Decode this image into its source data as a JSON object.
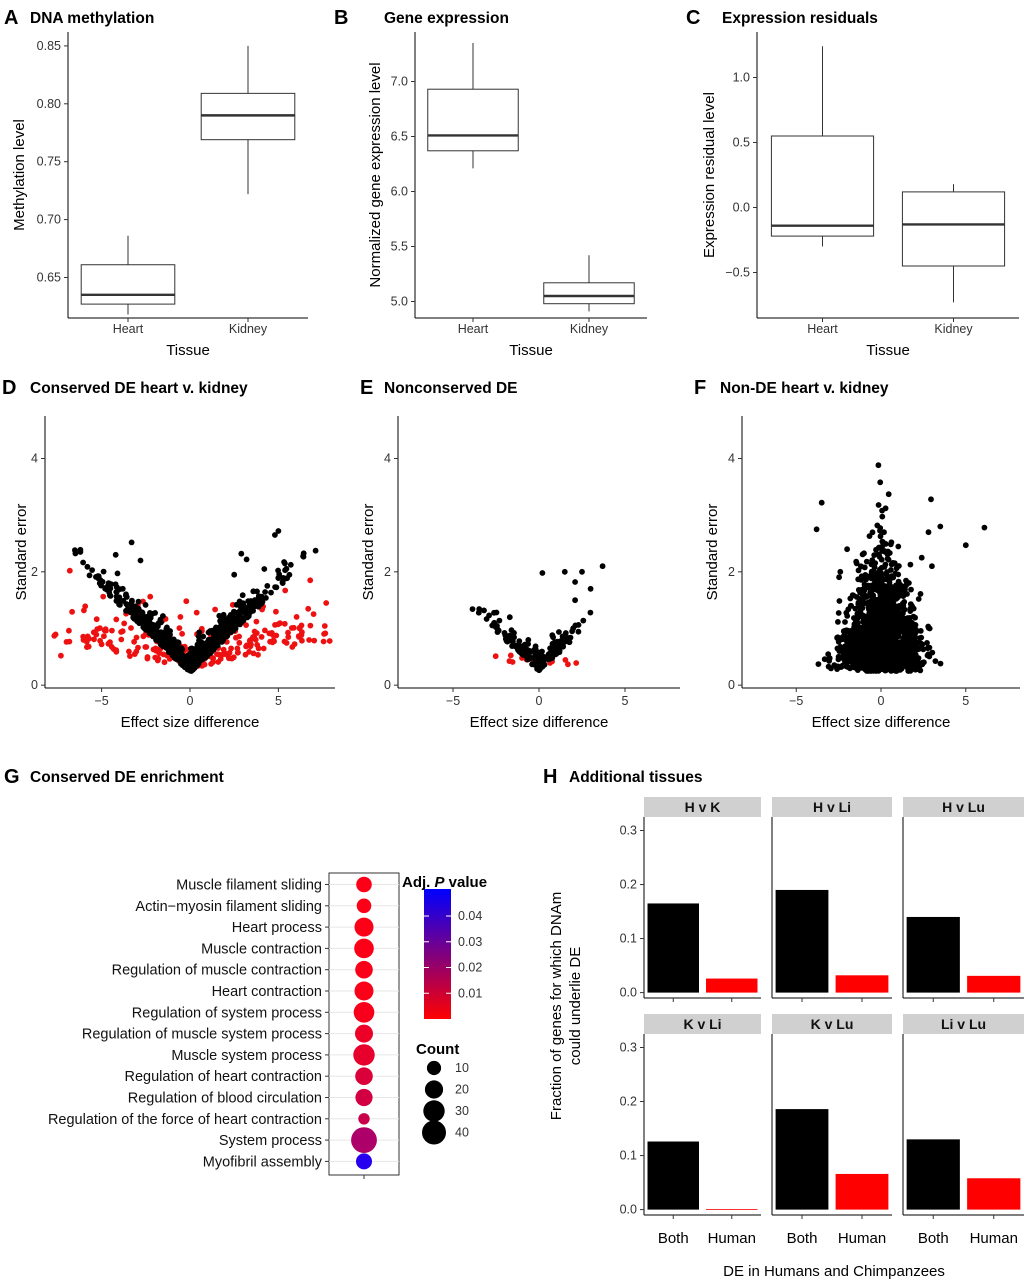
{
  "chart_data": [
    {
      "letter": "A",
      "title": "DNA methylation",
      "type": "box",
      "xlabel": "Tissue",
      "ylabel": "Methylation level",
      "ylim": [
        0.615,
        0.862
      ],
      "yticks": [
        0.65,
        0.7,
        0.75,
        0.8,
        0.85
      ],
      "ytick_labels": [
        "0.65",
        "0.70",
        "0.75",
        "0.80",
        "0.85"
      ],
      "categories": [
        "Heart",
        "Kidney"
      ],
      "boxes": [
        {
          "min": 0.618,
          "q1": 0.627,
          "median": 0.635,
          "q3": 0.661,
          "max": 0.686
        },
        {
          "min": 0.722,
          "q1": 0.769,
          "median": 0.79,
          "q3": 0.809,
          "max": 0.85
        }
      ]
    },
    {
      "letter": "B",
      "title": "Gene expression",
      "type": "box",
      "xlabel": "Tissue",
      "ylabel": "Normalized gene expression level",
      "ylim": [
        4.85,
        7.45
      ],
      "yticks": [
        5.0,
        5.5,
        6.0,
        6.5,
        7.0
      ],
      "ytick_labels": [
        "5.0",
        "5.5",
        "6.0",
        "6.5",
        "7.0"
      ],
      "categories": [
        "Heart",
        "Kidney"
      ],
      "boxes": [
        {
          "min": 6.21,
          "q1": 6.37,
          "median": 6.51,
          "q3": 6.93,
          "max": 7.35
        },
        {
          "min": 4.91,
          "q1": 4.98,
          "median": 5.05,
          "q3": 5.17,
          "max": 5.42
        }
      ]
    },
    {
      "letter": "C",
      "title": "Expression residuals",
      "type": "box",
      "xlabel": "Tissue",
      "ylabel": "Expression residual level",
      "ylim": [
        -0.85,
        1.35
      ],
      "yticks": [
        -0.5,
        0.0,
        0.5,
        1.0
      ],
      "ytick_labels": [
        "-0.5",
        "0.0",
        "0.5",
        "1.0"
      ],
      "categories": [
        "Heart",
        "Kidney"
      ],
      "boxes": [
        {
          "min": -0.3,
          "q1": -0.22,
          "median": -0.14,
          "q3": 0.55,
          "max": 1.24
        },
        {
          "min": -0.73,
          "q1": -0.45,
          "median": -0.13,
          "q3": 0.12,
          "max": 0.18
        }
      ]
    },
    {
      "letter": "D",
      "title": "Conserved DE heart v. kidney",
      "type": "scatter",
      "xlabel": "Effect size difference",
      "ylabel": "Standard error",
      "xlim": [
        -8.2,
        8.2
      ],
      "ylim": [
        -0.05,
        4.75
      ],
      "xticks": [
        -5,
        0,
        5
      ],
      "xtick_labels": [
        "-5",
        "0",
        "5"
      ],
      "yticks": [
        0,
        2,
        4
      ],
      "ytick_labels": [
        "0",
        "2",
        "4"
      ],
      "series": [
        {
          "name": "black",
          "color": "#000000",
          "shape": "v",
          "n": 700,
          "spread": 2.3,
          "base": 0.22,
          "slope": 0.3,
          "noise": 0.18,
          "seed": 11,
          "extra": [
            [
              -6.2,
              2.35
            ],
            [
              -4.2,
              2.3
            ],
            [
              -3.3,
              2.52
            ],
            [
              -2.8,
              2.2
            ],
            [
              -5.1,
              1.8
            ],
            [
              -3.8,
              1.7
            ],
            [
              2.9,
              2.32
            ],
            [
              3.2,
              2.22
            ],
            [
              4.8,
              2.65
            ],
            [
              5.0,
              2.72
            ],
            [
              4.2,
              2.05
            ],
            [
              2.5,
              1.95
            ]
          ]
        },
        {
          "name": "red",
          "color": "#ee1111",
          "shape": "wide",
          "n": 260,
          "spread": 4.6,
          "base": 0.3,
          "slope": 0.06,
          "noise": 0.38,
          "seed": 23,
          "extra": [
            [
              -6.8,
              2.02
            ],
            [
              -7.3,
              0.52
            ],
            [
              7.7,
              1.45
            ],
            [
              7.9,
              0.78
            ],
            [
              6.8,
              1.85
            ],
            [
              -6.0,
              1.32
            ]
          ]
        }
      ]
    },
    {
      "letter": "E",
      "title": "Nonconserved DE",
      "type": "scatter",
      "xlabel": "Effect size difference",
      "ylabel": "Standard error",
      "xlim": [
        -8.2,
        8.2
      ],
      "ylim": [
        -0.05,
        4.75
      ],
      "xticks": [
        -5,
        0,
        5
      ],
      "xtick_labels": [
        "-5",
        "0",
        "5"
      ],
      "yticks": [
        0,
        2,
        4
      ],
      "ytick_labels": [
        "0",
        "2",
        "4"
      ],
      "series": [
        {
          "name": "black",
          "color": "#000000",
          "shape": "v",
          "n": 190,
          "spread": 1.2,
          "base": 0.25,
          "slope": 0.28,
          "noise": 0.16,
          "seed": 5,
          "extra": [
            [
              3.7,
              2.1
            ],
            [
              2.5,
              2.0
            ],
            [
              1.5,
              2.0
            ],
            [
              0.2,
              1.98
            ],
            [
              2.1,
              1.82
            ],
            [
              3.0,
              1.7
            ],
            [
              2.1,
              1.5
            ],
            [
              -3.2,
              1.32
            ],
            [
              -2.6,
              1.1
            ],
            [
              -1.7,
              1.2
            ]
          ]
        },
        {
          "name": "red",
          "color": "#ee1111",
          "shape": "wide",
          "n": 14,
          "spread": 1.2,
          "base": 0.35,
          "slope": 0.0,
          "noise": 0.1,
          "seed": 9,
          "extra": []
        }
      ]
    },
    {
      "letter": "F",
      "title": "Non-DE heart v. kidney",
      "type": "scatter",
      "xlabel": "Effect size difference",
      "ylabel": "Standard error",
      "xlim": [
        -8.2,
        8.2
      ],
      "ylim": [
        -0.05,
        4.75
      ],
      "xticks": [
        -5,
        0,
        5
      ],
      "xtick_labels": [
        "-5",
        "0",
        "5"
      ],
      "yticks": [
        0,
        2,
        4
      ],
      "ytick_labels": [
        "0",
        "2",
        "4"
      ],
      "series": [
        {
          "name": "black",
          "color": "#000000",
          "shape": "cloud",
          "n": 1600,
          "spread": 1.1,
          "base": 0.25,
          "slope": 0.0,
          "noise": 1.05,
          "seed": 31,
          "extra": [
            [
              -0.05,
              3.58
            ],
            [
              -3.5,
              3.22
            ],
            [
              2.95,
              3.28
            ],
            [
              -3.8,
              2.75
            ],
            [
              3.5,
              2.8
            ],
            [
              6.1,
              2.78
            ],
            [
              5.0,
              2.47
            ],
            [
              2.8,
              2.7
            ],
            [
              -2.0,
              2.4
            ],
            [
              3.0,
              2.1
            ],
            [
              -2.4,
              2.0
            ],
            [
              2.4,
              2.25
            ]
          ]
        }
      ]
    },
    {
      "letter": "G",
      "title": "Conserved DE enrichment",
      "type": "dot",
      "terms": [
        "Muscle filament sliding",
        "Actin−myosin filament sliding",
        "Heart process",
        "Muscle contraction",
        "Regulation of muscle contraction",
        "Heart contraction",
        "Regulation of system process",
        "Regulation of muscle system process",
        "Muscle system process",
        "Regulation of heart contraction",
        "Regulation of blood circulation",
        "Regulation of the force of heart contraction",
        "System process",
        "Myofibril assembly"
      ],
      "counts": [
        13,
        11,
        22,
        24,
        18,
        22,
        27,
        19,
        30,
        18,
        17,
        5,
        48,
        14
      ],
      "padj": [
        0.0006,
        0.0006,
        0.0007,
        0.0007,
        0.0012,
        0.0012,
        0.0016,
        0.0045,
        0.0055,
        0.0085,
        0.0105,
        0.0125,
        0.019,
        0.05
      ],
      "color_legend_title_parts": [
        "Adj. ",
        "P",
        " value"
      ],
      "color_range": [
        0.0,
        0.05
      ],
      "color_ticks": [
        0.01,
        0.02,
        0.03,
        0.04
      ],
      "color_tick_labels": [
        "0.01",
        "0.02",
        "0.03",
        "0.04"
      ],
      "colors": {
        "low": "#ff0000",
        "high": "#0000ff"
      },
      "size_legend_title": "Count",
      "size_legend_values": [
        10,
        20,
        30,
        40
      ],
      "size_legend_labels": [
        "10",
        "20",
        "30",
        "40"
      ]
    },
    {
      "letter": "H",
      "title": "Additional tissues",
      "type": "bar",
      "ylabel_lines": [
        "Fraction of genes for which DNAm",
        "could underlie DE"
      ],
      "xlabel": "DE in Humans and Chimpanzees",
      "categories": [
        "Both",
        "Human"
      ],
      "bar_colors": {
        "Both": "#000000",
        "Human": "#ff0000"
      },
      "ylim": [
        -0.01,
        0.325
      ],
      "yticks": [
        0.0,
        0.1,
        0.2,
        0.3
      ],
      "ytick_labels": [
        "0.0",
        "0.1",
        "0.2",
        "0.3"
      ],
      "facets": [
        {
          "label": "H v K",
          "values": [
            0.165,
            0.026
          ]
        },
        {
          "label": "H v Li",
          "values": [
            0.19,
            0.032
          ]
        },
        {
          "label": "H v Lu",
          "values": [
            0.14,
            0.031
          ]
        },
        {
          "label": "K v Li",
          "values": [
            0.126,
            0.001
          ]
        },
        {
          "label": "K v Lu",
          "values": [
            0.186,
            0.066
          ]
        },
        {
          "label": "Li v Lu",
          "values": [
            0.13,
            0.058
          ]
        }
      ]
    }
  ]
}
